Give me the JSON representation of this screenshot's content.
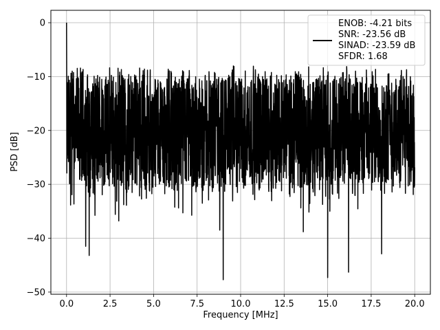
{
  "chart_data": {
    "type": "line",
    "title": "",
    "xlabel": "Frequency [MHz]",
    "ylabel": "PSD [dB]",
    "xlim": [
      -0.9,
      20.9
    ],
    "ylim": [
      -50.4,
      2.3
    ],
    "x_ticks": [
      0.0,
      2.5,
      5.0,
      7.5,
      10.0,
      12.5,
      15.0,
      17.5,
      20.0
    ],
    "x_tick_labels": [
      "0.0",
      "2.5",
      "5.0",
      "7.5",
      "10.0",
      "12.5",
      "15.0",
      "17.5",
      "20.0"
    ],
    "y_ticks": [
      0,
      -10,
      -20,
      -30,
      -40,
      -50
    ],
    "y_tick_labels": [
      "0",
      "−10",
      "−20",
      "−30",
      "−40",
      "−50"
    ],
    "grid": true,
    "legend": {
      "placement": "top-right",
      "lines": [
        "ENOB: -4.21 bits",
        "SNR: -23.56 dB",
        "SINAD: -23.59 dB",
        "SFDR: 1.68"
      ]
    },
    "series": [
      {
        "color": "#000000",
        "x_range": [
          0.0,
          20.0
        ],
        "typical_band": [
          -30,
          -10
        ],
        "peak": {
          "x": 0.0,
          "y": 0.0
        },
        "dips": [
          {
            "x": 1.1,
            "y": -41.5
          },
          {
            "x": 1.3,
            "y": -43.2
          },
          {
            "x": 9.0,
            "y": -47.7
          },
          {
            "x": 15.0,
            "y": -47.3
          },
          {
            "x": 16.2,
            "y": -46.3
          },
          {
            "x": 18.1,
            "y": -42.9
          },
          {
            "x": 13.6,
            "y": -38.8
          },
          {
            "x": 3.0,
            "y": -36.8
          },
          {
            "x": 8.8,
            "y": -38.5
          }
        ]
      }
    ]
  }
}
